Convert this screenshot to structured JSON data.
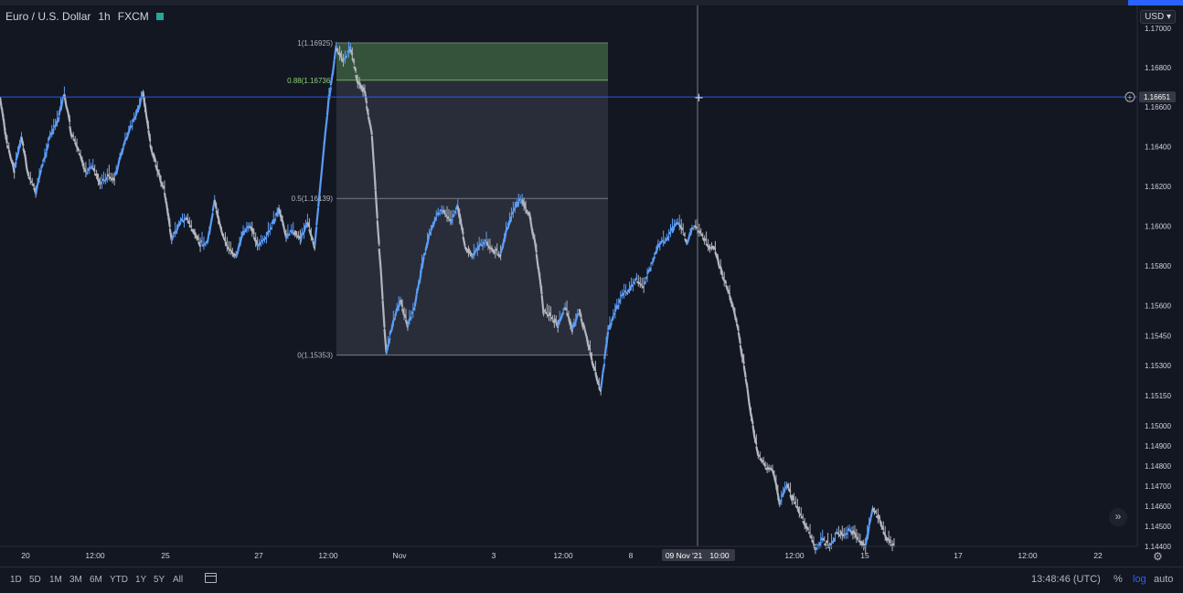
{
  "header": {
    "symbol": "Euro / U.S. Dollar",
    "interval": "1h",
    "exchange": "FXCM",
    "currency": "USD",
    "status_color": "#26a69a"
  },
  "chart_data": {
    "type": "line",
    "series": [
      {
        "values": [
          1.1665,
          1.1641,
          1.1628,
          1.1645,
          1.1625,
          1.1617,
          1.1632,
          1.1645,
          1.1652,
          1.1667,
          1.1646,
          1.1637,
          1.1627,
          1.1629,
          1.1622,
          1.1625,
          1.1624,
          1.1637,
          1.1648,
          1.1655,
          1.1667,
          1.1642,
          1.1628,
          1.1618,
          1.1593,
          1.1601,
          1.1604,
          1.1597,
          1.1591,
          1.1592,
          1.1612,
          1.1596,
          1.1588,
          1.1585,
          1.1596,
          1.1601,
          1.159,
          1.1593,
          1.16,
          1.1608,
          1.1595,
          1.1598,
          1.1593,
          1.1602,
          1.159,
          1.1628,
          1.1665,
          1.169,
          1.1684,
          1.169,
          1.1673,
          1.1667,
          1.1645,
          1.159,
          1.1536,
          1.1553,
          1.1562,
          1.155,
          1.156,
          1.158,
          1.1595,
          1.1605,
          1.1608,
          1.1602,
          1.161,
          1.159,
          1.1585,
          1.159,
          1.1592,
          1.1588,
          1.1585,
          1.16,
          1.161,
          1.1613,
          1.1606,
          1.1587,
          1.1557,
          1.1555,
          1.155,
          1.156,
          1.1548,
          1.1557,
          1.1544,
          1.153,
          1.1517,
          1.1547,
          1.1557,
          1.1566,
          1.1568,
          1.1573,
          1.157,
          1.158,
          1.159,
          1.1592,
          1.1598,
          1.1602,
          1.1592,
          1.16,
          1.1596,
          1.159,
          1.1588,
          1.1575,
          1.1565,
          1.1552,
          1.153,
          1.1505,
          1.1485,
          1.148,
          1.1478,
          1.1462,
          1.147,
          1.1462,
          1.1455,
          1.1448,
          1.1438,
          1.1443,
          1.144,
          1.1447,
          1.1446,
          1.1448,
          1.1443,
          1.144,
          1.1459,
          1.1453,
          1.1443,
          1.144
        ]
      }
    ],
    "x_ticks": [
      "20",
      "12:00",
      "25",
      "27",
      "12:00",
      "Nov",
      "3",
      "12:00",
      "8",
      "09 Nov '21",
      "10:00",
      "12:00",
      "15",
      "17",
      "12:00",
      "22"
    ],
    "y_ticks": [
      "1.17000",
      "1.16800",
      "1.16600",
      "1.16400",
      "1.16200",
      "1.16000",
      "1.15800",
      "1.15600",
      "1.15450",
      "1.15300",
      "1.15150",
      "1.15000",
      "1.14900",
      "1.14800",
      "1.14700",
      "1.14600",
      "1.14500",
      "1.14400"
    ],
    "ylim": [
      1.144,
      1.1705
    ],
    "scale": "log",
    "grid": false,
    "crosshair": {
      "price": "1.16651",
      "time_label": "09 Nov '21",
      "time": "10:00"
    },
    "fib_retracement": {
      "levels": [
        {
          "label": "1(1.16925)",
          "ratio": 1,
          "price": 1.16925
        },
        {
          "label": "0.88(1.16736)",
          "ratio": 0.88,
          "price": 1.16736
        },
        {
          "label": "0.5(1.16139)",
          "ratio": 0.5,
          "price": 1.16139
        },
        {
          "label": "0(1.15353)",
          "ratio": 0,
          "price": 1.15353
        }
      ]
    }
  },
  "bottom_toolbar": {
    "timeframes": [
      "1D",
      "5D",
      "1M",
      "3M",
      "6M",
      "YTD",
      "1Y",
      "5Y",
      "All"
    ],
    "clock": "13:48:46 (UTC)",
    "options": [
      "%",
      "log",
      "auto"
    ]
  },
  "colors": {
    "background": "#131722",
    "up_line": "#5b9cf6",
    "down_line": "#b2b5be",
    "fib_zone_top": "#3c5e3f",
    "fib_zone_main": "#2b303c",
    "crosshair": "#9598a1",
    "price_line": "#2962ff"
  }
}
